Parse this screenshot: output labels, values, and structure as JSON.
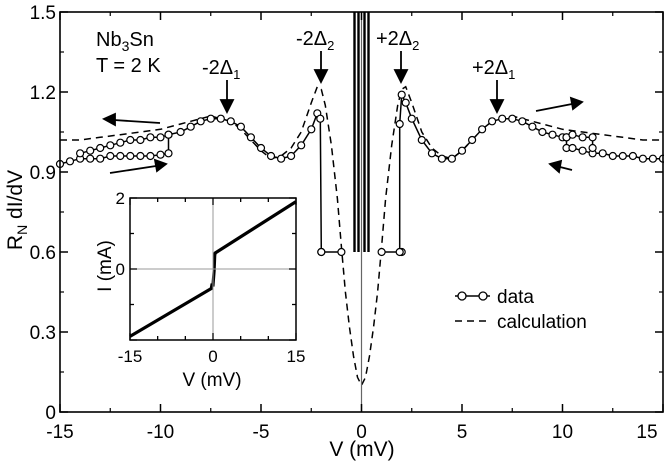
{
  "chart_data": [
    {
      "type": "line",
      "title": "",
      "xlabel": "V (mV)",
      "ylabel_main": "R",
      "ylabel_sub": "N",
      "ylabel_rest": " dI/dV",
      "xlim": [
        -15,
        15
      ],
      "ylim": [
        0,
        1.5
      ],
      "xticks": [
        -15,
        -10,
        -5,
        0,
        5,
        10,
        15
      ],
      "xtick_labels": [
        "-15",
        "-10",
        "-5",
        "0",
        "5",
        "10",
        "15"
      ],
      "yticks": [
        0,
        0.3,
        0.6,
        0.9,
        1.2,
        1.5
      ],
      "ytick_labels": [
        "0",
        "0.3",
        "0.6",
        "0.9",
        "1.2",
        "1.5"
      ],
      "sample": {
        "line1": "Nb",
        "sub": "3",
        "line1_rest": "Sn",
        "line2": "T = 2 K"
      },
      "annotations": [
        {
          "base": "-2Δ",
          "sub": "1",
          "x": -7.5,
          "y": 1.1
        },
        {
          "base": "-2Δ",
          "sub": "2",
          "x": -2.0,
          "y": 1.22
        },
        {
          "base": "+2Δ",
          "sub": "2",
          "x": 2.0,
          "y": 1.22
        },
        {
          "base": "+2Δ",
          "sub": "1",
          "x": 7.3,
          "y": 1.1
        }
      ],
      "legend": {
        "position": "center-right",
        "entries": [
          "data",
          "calculation"
        ]
      },
      "series": [
        {
          "name": "data",
          "style": "solid-circles",
          "segments": [
            [
              [
                -15,
                0.93
              ],
              [
                -14.5,
                0.94
              ],
              [
                -14,
                0.95
              ],
              [
                -13.5,
                0.95
              ],
              [
                -13,
                0.95
              ],
              [
                -12.5,
                0.96
              ],
              [
                -12,
                0.96
              ],
              [
                -11.5,
                0.96
              ],
              [
                -11,
                0.96
              ],
              [
                -10.5,
                0.96
              ],
              [
                -10,
                0.965
              ],
              [
                -9.6,
                0.97
              ],
              [
                -9.6,
                1.04
              ],
              [
                -9,
                1.05
              ],
              [
                -8.5,
                1.07
              ],
              [
                -8,
                1.09
              ],
              [
                -7.5,
                1.1
              ],
              [
                -7,
                1.1
              ],
              [
                -6.5,
                1.09
              ],
              [
                -6,
                1.07
              ],
              [
                -5.5,
                1.03
              ],
              [
                -5,
                0.99
              ],
              [
                -4.5,
                0.96
              ],
              [
                -4,
                0.95
              ],
              [
                -3.5,
                0.96
              ],
              [
                -3,
                1.0
              ],
              [
                -2.5,
                1.06
              ],
              [
                -2.2,
                1.12
              ],
              [
                -2.05,
                1.1
              ],
              [
                -2.0,
                0.6
              ]
            ],
            [
              [
                -14,
                0.97
              ],
              [
                -13.5,
                0.98
              ],
              [
                -13,
                0.99
              ],
              [
                -12.5,
                1.0
              ],
              [
                -12,
                1.01
              ],
              [
                -11.5,
                1.02
              ],
              [
                -11,
                1.02
              ],
              [
                -10.5,
                1.03
              ],
              [
                -10,
                1.03
              ],
              [
                -9.6,
                1.04
              ]
            ],
            [
              [
                -2.0,
                0.6
              ],
              [
                -1.0,
                0.6
              ]
            ],
            [
              [
                1.0,
                0.6
              ],
              [
                2.0,
                0.6
              ]
            ],
            [
              [
                1.9,
                0.6
              ],
              [
                1.9,
                1.08
              ],
              [
                2.0,
                1.19
              ],
              [
                2.2,
                1.16
              ],
              [
                2.5,
                1.1
              ],
              [
                3,
                1.02
              ],
              [
                3.5,
                0.97
              ],
              [
                4,
                0.95
              ],
              [
                4.5,
                0.95
              ],
              [
                5,
                0.98
              ],
              [
                5.5,
                1.02
              ],
              [
                6,
                1.06
              ],
              [
                6.5,
                1.09
              ],
              [
                7,
                1.1
              ],
              [
                7.5,
                1.1
              ],
              [
                8,
                1.09
              ],
              [
                8.5,
                1.07
              ],
              [
                9,
                1.05
              ],
              [
                9.5,
                1.04
              ],
              [
                10,
                1.03
              ],
              [
                10.2,
                1.03
              ],
              [
                10.2,
                0.99
              ],
              [
                10.5,
                0.99
              ],
              [
                11,
                0.98
              ],
              [
                11.5,
                0.97
              ],
              [
                12,
                0.97
              ],
              [
                12.5,
                0.96
              ],
              [
                13,
                0.96
              ],
              [
                13.5,
                0.96
              ],
              [
                14,
                0.95
              ],
              [
                14.5,
                0.95
              ],
              [
                15,
                0.95
              ]
            ],
            [
              [
                10.2,
                1.03
              ],
              [
                10.5,
                1.04
              ],
              [
                11,
                1.03
              ],
              [
                11.5,
                1.03
              ],
              [
                11.5,
                0.99
              ]
            ]
          ]
        },
        {
          "name": "calculation",
          "style": "dashed",
          "points": [
            [
              -15,
              1.02
            ],
            [
              -14,
              1.02
            ],
            [
              -13,
              1.03
            ],
            [
              -12,
              1.04
            ],
            [
              -11,
              1.05
            ],
            [
              -10,
              1.06
            ],
            [
              -9,
              1.08
            ],
            [
              -8.5,
              1.09
            ],
            [
              -8,
              1.1
            ],
            [
              -7.5,
              1.11
            ],
            [
              -7,
              1.1
            ],
            [
              -6.5,
              1.09
            ],
            [
              -6,
              1.06
            ],
            [
              -5.5,
              1.02
            ],
            [
              -5,
              0.98
            ],
            [
              -4.5,
              0.95
            ],
            [
              -4,
              0.96
            ],
            [
              -3.5,
              0.99
            ],
            [
              -3,
              1.05
            ],
            [
              -2.5,
              1.16
            ],
            [
              -2.2,
              1.22
            ],
            [
              -2,
              1.21
            ],
            [
              -1.8,
              1.15
            ],
            [
              -1.5,
              1.0
            ],
            [
              -1.2,
              0.8
            ],
            [
              -1,
              0.62
            ],
            [
              -0.8,
              0.45
            ],
            [
              -0.6,
              0.32
            ],
            [
              -0.4,
              0.21
            ],
            [
              -0.2,
              0.13
            ],
            [
              0,
              0.1
            ],
            [
              0.2,
              0.13
            ],
            [
              0.4,
              0.21
            ],
            [
              0.6,
              0.32
            ],
            [
              0.8,
              0.45
            ],
            [
              1,
              0.62
            ],
            [
              1.2,
              0.8
            ],
            [
              1.5,
              1.0
            ],
            [
              1.8,
              1.15
            ],
            [
              2,
              1.21
            ],
            [
              2.2,
              1.22
            ],
            [
              2.5,
              1.16
            ],
            [
              3,
              1.05
            ],
            [
              3.5,
              0.99
            ],
            [
              4,
              0.96
            ],
            [
              4.5,
              0.95
            ],
            [
              5,
              0.98
            ],
            [
              5.5,
              1.02
            ],
            [
              6,
              1.06
            ],
            [
              6.5,
              1.09
            ],
            [
              7,
              1.1
            ],
            [
              7.5,
              1.11
            ],
            [
              8,
              1.1
            ],
            [
              8.5,
              1.09
            ],
            [
              9,
              1.08
            ],
            [
              10,
              1.06
            ],
            [
              11,
              1.05
            ],
            [
              12,
              1.04
            ],
            [
              13,
              1.03
            ],
            [
              14,
              1.02
            ],
            [
              15,
              1.02
            ]
          ]
        }
      ]
    },
    {
      "type": "line",
      "title": "",
      "xlabel": "V (mV)",
      "ylabel": "I (mA)",
      "xlim": [
        -15,
        15
      ],
      "ylim": [
        -2,
        2
      ],
      "xticks": [
        -15,
        0,
        15
      ],
      "xtick_labels": [
        "-15",
        "0",
        "15"
      ],
      "yticks": [
        0,
        2
      ],
      "ytick_labels": [
        "0",
        "2"
      ],
      "series": [
        {
          "name": "I-V",
          "points": [
            [
              -15,
              -1.9
            ],
            [
              -0.3,
              -0.55
            ],
            [
              -0.2,
              -0.45
            ],
            [
              0,
              -0.45
            ],
            [
              0.2,
              -0.05
            ],
            [
              0.3,
              0.38
            ],
            [
              0.4,
              0.45
            ],
            [
              15,
              1.9
            ]
          ]
        }
      ]
    }
  ]
}
